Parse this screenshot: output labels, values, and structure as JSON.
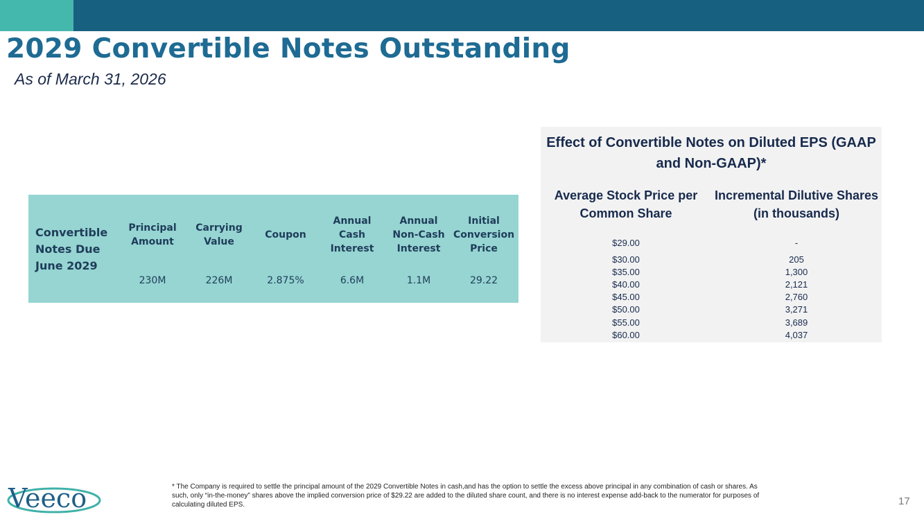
{
  "slide": {
    "title": "2029 Convertible Notes Outstanding",
    "subtitle": "As of March 31, 2026",
    "page_number": "17"
  },
  "notes_table": {
    "row_label": "Convertible Notes Due June 2029",
    "columns": [
      {
        "header": "Principal Amount",
        "value": "230M"
      },
      {
        "header": "Carrying Value",
        "value": "226M"
      },
      {
        "header": "Coupon",
        "value": "2.875%"
      },
      {
        "header": "Annual Cash Interest",
        "value": "6.6M"
      },
      {
        "header": "Annual Non-Cash Interest",
        "value": "1.1M"
      },
      {
        "header": "Initial Conversion Price",
        "value": "29.22"
      }
    ]
  },
  "eps_table": {
    "title": "Effect of Convertible Notes on Diluted EPS (GAAP and Non-GAAP)*",
    "col1_header": "Average Stock Price per Common Share",
    "col2_header": "Incremental Dilutive Shares (in thousands)",
    "rows": [
      {
        "price": "$29.00",
        "shares": "-"
      },
      {
        "price": "$30.00",
        "shares": "205"
      },
      {
        "price": "$35.00",
        "shares": "1,300"
      },
      {
        "price": "$40.00",
        "shares": "2,121"
      },
      {
        "price": "$45.00",
        "shares": "2,760"
      },
      {
        "price": "$50.00",
        "shares": "3,271"
      },
      {
        "price": "$55.00",
        "shares": "3,689"
      },
      {
        "price": "$60.00",
        "shares": "4,037"
      }
    ]
  },
  "footer": {
    "logo_text": "Veeco",
    "footnote": "* The Company is required to settle the principal amount of the 2029 Convertible Notes in cash,and has the option to settle the excess above principal in any combination of cash or shares. As such, only “in-the-money” shares above the implied conversion price of $29.22 are added to the diluted share count, and there is no interest expense add-back to the numerator for purposes of calculating diluted EPS."
  },
  "colors": {
    "header_bar": "#17607f",
    "header_accent": "#45b8ad",
    "title": "#1e6b93",
    "notes_box": "#96d5d2",
    "eps_box": "#f2f2f2"
  }
}
